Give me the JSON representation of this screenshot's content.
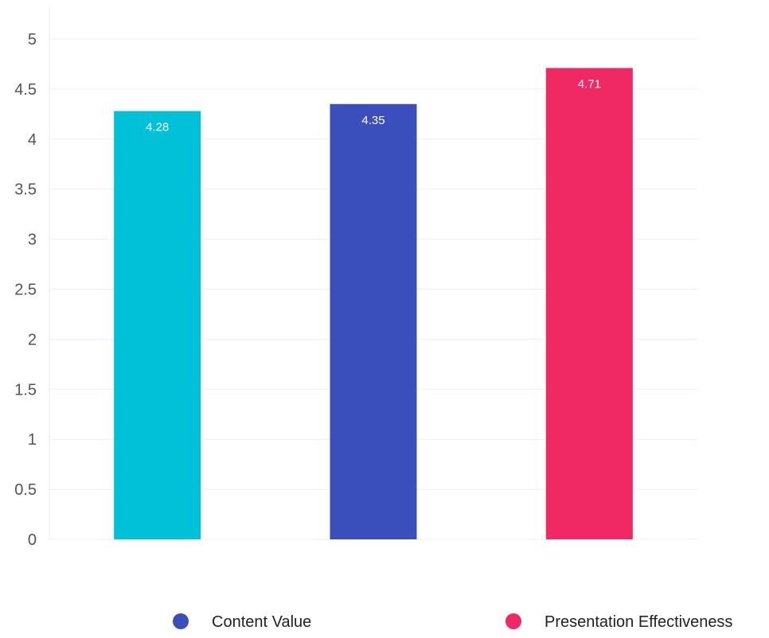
{
  "chart_data": {
    "type": "bar",
    "categories": [
      "",
      "Content Value",
      "Presentation Effectiveness"
    ],
    "values": [
      4.28,
      4.35,
      4.71
    ],
    "data_labels": [
      "4.28",
      "4.35",
      "4.71"
    ],
    "colors": [
      "#00C1D8",
      "#3A4FBB",
      "#F02864"
    ],
    "ylim": [
      0,
      5
    ],
    "yticks": [
      0,
      0.5,
      1,
      1.5,
      2,
      2.5,
      3,
      3.5,
      4,
      4.5,
      5
    ],
    "ytick_labels": [
      "0",
      "0.5",
      "1",
      "1.5",
      "2",
      "2.5",
      "3",
      "3.5",
      "4",
      "4.5",
      "5"
    ],
    "grid": true,
    "legend_position": "bottom",
    "legend": [
      {
        "label": "Content Value",
        "color": "#3A4FBB"
      },
      {
        "label": "Presentation Effectiveness",
        "color": "#F02864"
      }
    ],
    "title": "",
    "xlabel": "",
    "ylabel": ""
  }
}
